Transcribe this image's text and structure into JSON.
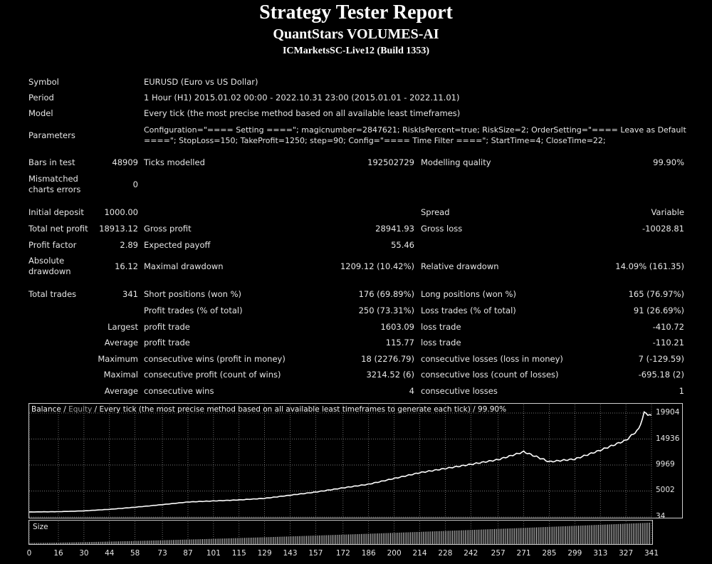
{
  "header": {
    "title": "Strategy Tester Report",
    "subtitle": "QuantStars VOLUMES-AI",
    "server": "ICMarketsSC-Live12 (Build 1353)"
  },
  "info": {
    "symbol_label": "Symbol",
    "symbol_value": "EURUSD (Euro vs US Dollar)",
    "period_label": "Period",
    "period_value": "1 Hour (H1) 2015.01.02 00:00 - 2022.10.31 23:00 (2015.01.01 - 2022.11.01)",
    "model_label": "Model",
    "model_value": "Every tick (the most precise method based on all available least timeframes)",
    "parameters_label": "Parameters",
    "parameters_line1": "Configuration=\"==== Setting ====\"; magicnumber=2847621; RiskIsPercent=true; RiskSize=2; OrderSetting=\"==== Leave as Default",
    "parameters_line2": "====\"; StopLoss=150; TakeProfit=1250; step=90; Config=\"==== Time Filter ====\"; StartTime=4; CloseTime=22;"
  },
  "stats": {
    "bars_label": "Bars in test",
    "bars_value": "48909",
    "ticks_label": "Ticks modelled",
    "ticks_value": "192502729",
    "quality_label": "Modelling quality",
    "quality_value": "99.90%",
    "mismatch_label_1": "Mismatched",
    "mismatch_label_2": "charts errors",
    "mismatch_value": "0",
    "deposit_label": "Initial deposit",
    "deposit_value": "1000.00",
    "spread_label": "Spread",
    "spread_value": "Variable",
    "netprofit_label": "Total net profit",
    "netprofit_value": "18913.12",
    "grossprofit_label": "Gross profit",
    "grossprofit_value": "28941.93",
    "grossloss_label": "Gross loss",
    "grossloss_value": "-10028.81",
    "pf_label": "Profit factor",
    "pf_value": "2.89",
    "payoff_label": "Expected payoff",
    "payoff_value": "55.46",
    "absdd_label_1": "Absolute",
    "absdd_label_2": "drawdown",
    "absdd_value": "16.12",
    "maxdd_label": "Maximal drawdown",
    "maxdd_value": "1209.12 (10.42%)",
    "reldd_label": "Relative drawdown",
    "reldd_value": "14.09% (161.35)",
    "trades_label": "Total trades",
    "trades_value": "341",
    "short_label": "Short positions (won %)",
    "short_value": "176 (69.89%)",
    "long_label": "Long positions (won %)",
    "long_value": "165 (76.97%)",
    "ptrades_label": "Profit trades (% of total)",
    "ptrades_value": "250 (73.31%)",
    "ltrades_label": "Loss trades (% of total)",
    "ltrades_value": "91 (26.69%)",
    "largest_label": "Largest",
    "largest_p_label": "profit trade",
    "largest_p_value": "1603.09",
    "largest_l_label": "loss trade",
    "largest_l_value": "-410.72",
    "average_label": "Average",
    "average_p_label": "profit trade",
    "average_p_value": "115.77",
    "average_l_label": "loss trade",
    "average_l_value": "-110.21",
    "maximum_label": "Maximum",
    "max_w_label": "consecutive wins (profit in money)",
    "max_w_value": "18 (2276.79)",
    "max_l_label": "consecutive losses (loss in money)",
    "max_l_value": "7 (-129.59)",
    "maximal_label": "Maximal",
    "mxl_w_label": "consecutive profit (count of wins)",
    "mxl_w_value": "3214.52 (6)",
    "mxl_l_label": "consecutive loss (count of losses)",
    "mxl_l_value": "-695.18 (2)",
    "avg2_label": "Average",
    "avg_w_label": "consecutive wins",
    "avg_w_value": "4",
    "avg_l_label": "consecutive losses",
    "avg_l_value": "1"
  },
  "chart": {
    "legend_balance": "Balance",
    "legend_sep": " / ",
    "legend_equity": "Equity",
    "legend_rest": " / Every tick (the most precise method based on all available least timeframes to generate each tick) / 99.90%",
    "size_label": "Size",
    "colors": {
      "background": "#000000",
      "line": "#ffffff",
      "grid": "#9a9a9a",
      "equity_legend": "#9a9a9a"
    }
  },
  "chart_data": {
    "type": "line",
    "series": [
      {
        "name": "Balance",
        "x": [
          0,
          16,
          30,
          44,
          58,
          73,
          87,
          101,
          115,
          129,
          143,
          157,
          172,
          186,
          200,
          214,
          228,
          242,
          257,
          271,
          285,
          299,
          313,
          327,
          334,
          337,
          341
        ],
        "values": [
          1000,
          1050,
          1200,
          1500,
          1900,
          2400,
          2900,
          3100,
          3300,
          3600,
          4200,
          4800,
          5600,
          6300,
          7400,
          8500,
          9300,
          10100,
          11000,
          12500,
          10600,
          11100,
          12800,
          14700,
          16800,
          19900,
          19500
        ]
      }
    ],
    "x_ticks": [
      "0",
      "16",
      "30",
      "44",
      "58",
      "73",
      "87",
      "101",
      "115",
      "129",
      "143",
      "157",
      "172",
      "186",
      "200",
      "214",
      "228",
      "242",
      "257",
      "271",
      "285",
      "299",
      "313",
      "327",
      "341"
    ],
    "y_ticks": [
      "19904",
      "14936",
      "9969",
      "5002",
      "34"
    ],
    "xlim": [
      0,
      341
    ],
    "ylim": [
      34,
      19904
    ],
    "grid": true,
    "size_bars": {
      "x_range": [
        0,
        341
      ],
      "count": 341,
      "min_height": 0.05,
      "max_height": 1.0
    }
  }
}
